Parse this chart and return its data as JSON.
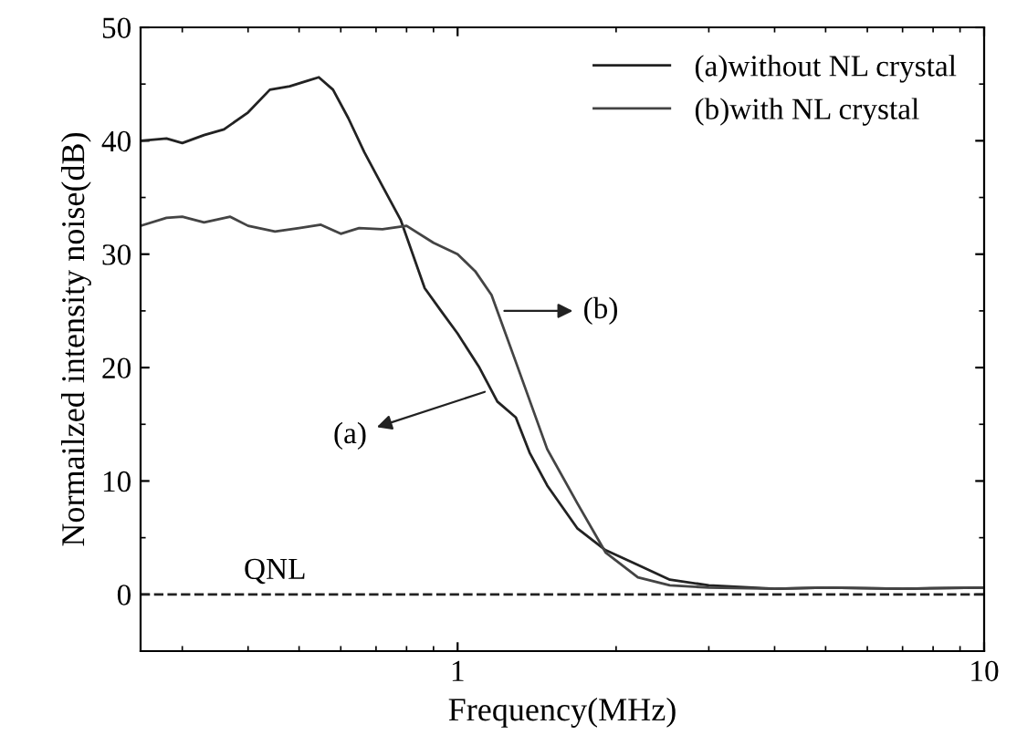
{
  "chart_data": {
    "type": "line",
    "xlabel": "Frequency(MHz)",
    "ylabel": "Normailzed intensity noise(dB)",
    "log": "x",
    "xlim": [
      0.25,
      10
    ],
    "xticks": [
      1,
      10
    ],
    "ylim": [
      -5,
      50
    ],
    "yticks": [
      0,
      10,
      20,
      30,
      40,
      50
    ],
    "grid": false,
    "legend": "top right",
    "marker": "none",
    "line_style": "solid",
    "series": [
      {
        "name": "(a)without NL crystal",
        "color": "#222222",
        "x": [
          0.25,
          0.28,
          0.3,
          0.33,
          0.36,
          0.4,
          0.44,
          0.48,
          0.52,
          0.545,
          0.58,
          0.62,
          0.665,
          0.72,
          0.78,
          0.866,
          0.93,
          1.0,
          1.1,
          1.19,
          1.29,
          1.37,
          1.48,
          1.69,
          1.91,
          2.2,
          2.53,
          3.0,
          4.0,
          5.0,
          7.0,
          10.0
        ],
        "values": [
          40,
          40.2,
          39.8,
          40.5,
          41,
          42.5,
          44.5,
          44.8,
          45.3,
          45.6,
          44.5,
          42,
          39,
          36,
          33,
          27,
          25,
          23,
          20,
          17,
          15.6,
          12.5,
          9.6,
          5.8,
          3.9,
          2.6,
          1.3,
          0.8,
          0.5,
          0.6,
          0.5,
          0.6
        ]
      },
      {
        "name": "(b)with NL crystal",
        "color": "#444444",
        "x": [
          0.25,
          0.28,
          0.3,
          0.33,
          0.37,
          0.4,
          0.45,
          0.5,
          0.55,
          0.6,
          0.65,
          0.72,
          0.8,
          0.9,
          1.0,
          1.08,
          1.16,
          1.29,
          1.48,
          1.69,
          1.91,
          2.2,
          2.53,
          3.0,
          4.0,
          5.0,
          7.0,
          10.0
        ],
        "values": [
          32.5,
          33.2,
          33.3,
          32.8,
          33.3,
          32.5,
          32,
          32.3,
          32.6,
          31.8,
          32.3,
          32.2,
          32.5,
          31,
          30,
          28.5,
          26.4,
          20.5,
          12.8,
          8,
          3.7,
          1.5,
          0.8,
          0.6,
          0.5,
          0.6,
          0.5,
          0.6
        ]
      }
    ],
    "ref_lines": [
      {
        "axis": "y",
        "value": 0,
        "label": "QNL",
        "color": "#222222",
        "line_style": "dashed"
      }
    ],
    "annotations": [
      {
        "text": "(a)",
        "x": 1.15,
        "y": 18
      },
      {
        "text": "(b)",
        "x": 1.2,
        "y": 25
      }
    ]
  }
}
